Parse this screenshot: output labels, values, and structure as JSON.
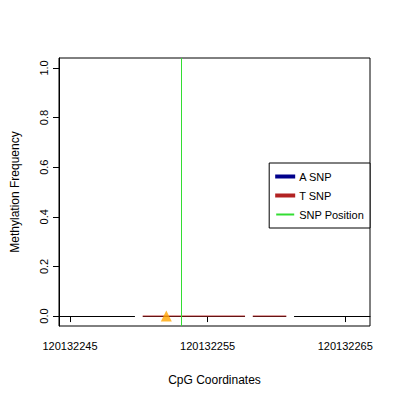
{
  "chart_data": {
    "type": "line",
    "x_label": "CpG Coordinates",
    "y_label": "Methylation Frequency",
    "xlim": [
      120132244.2,
      120132266.8
    ],
    "xticks": [
      120132245,
      120132255,
      120132265
    ],
    "ylim": [
      -0.04,
      1.04
    ],
    "yticks": [
      {
        "value": 0,
        "label": "0.0"
      },
      0.2,
      0.4,
      0.6,
      0.8,
      {
        "value": 1,
        "label": "1.0"
      }
    ],
    "legend": "right",
    "series": [
      {
        "name": "A SNP",
        "color": "#00008b",
        "x": [],
        "values": []
      },
      {
        "name": "T SNP",
        "color": "#b22222",
        "marker": "circle",
        "x": [
          120132250,
          120132258,
          120132261
        ],
        "values": [
          0,
          0,
          0
        ]
      },
      {
        "type": "scatter",
        "color": "#ffa500",
        "marker": "triangle",
        "x": [
          120132252
        ],
        "values": [
          0
        ]
      },
      {
        "name": "SNP Position",
        "type": "vline",
        "color": "#33dd33",
        "x": [
          120132253.1
        ]
      }
    ]
  }
}
